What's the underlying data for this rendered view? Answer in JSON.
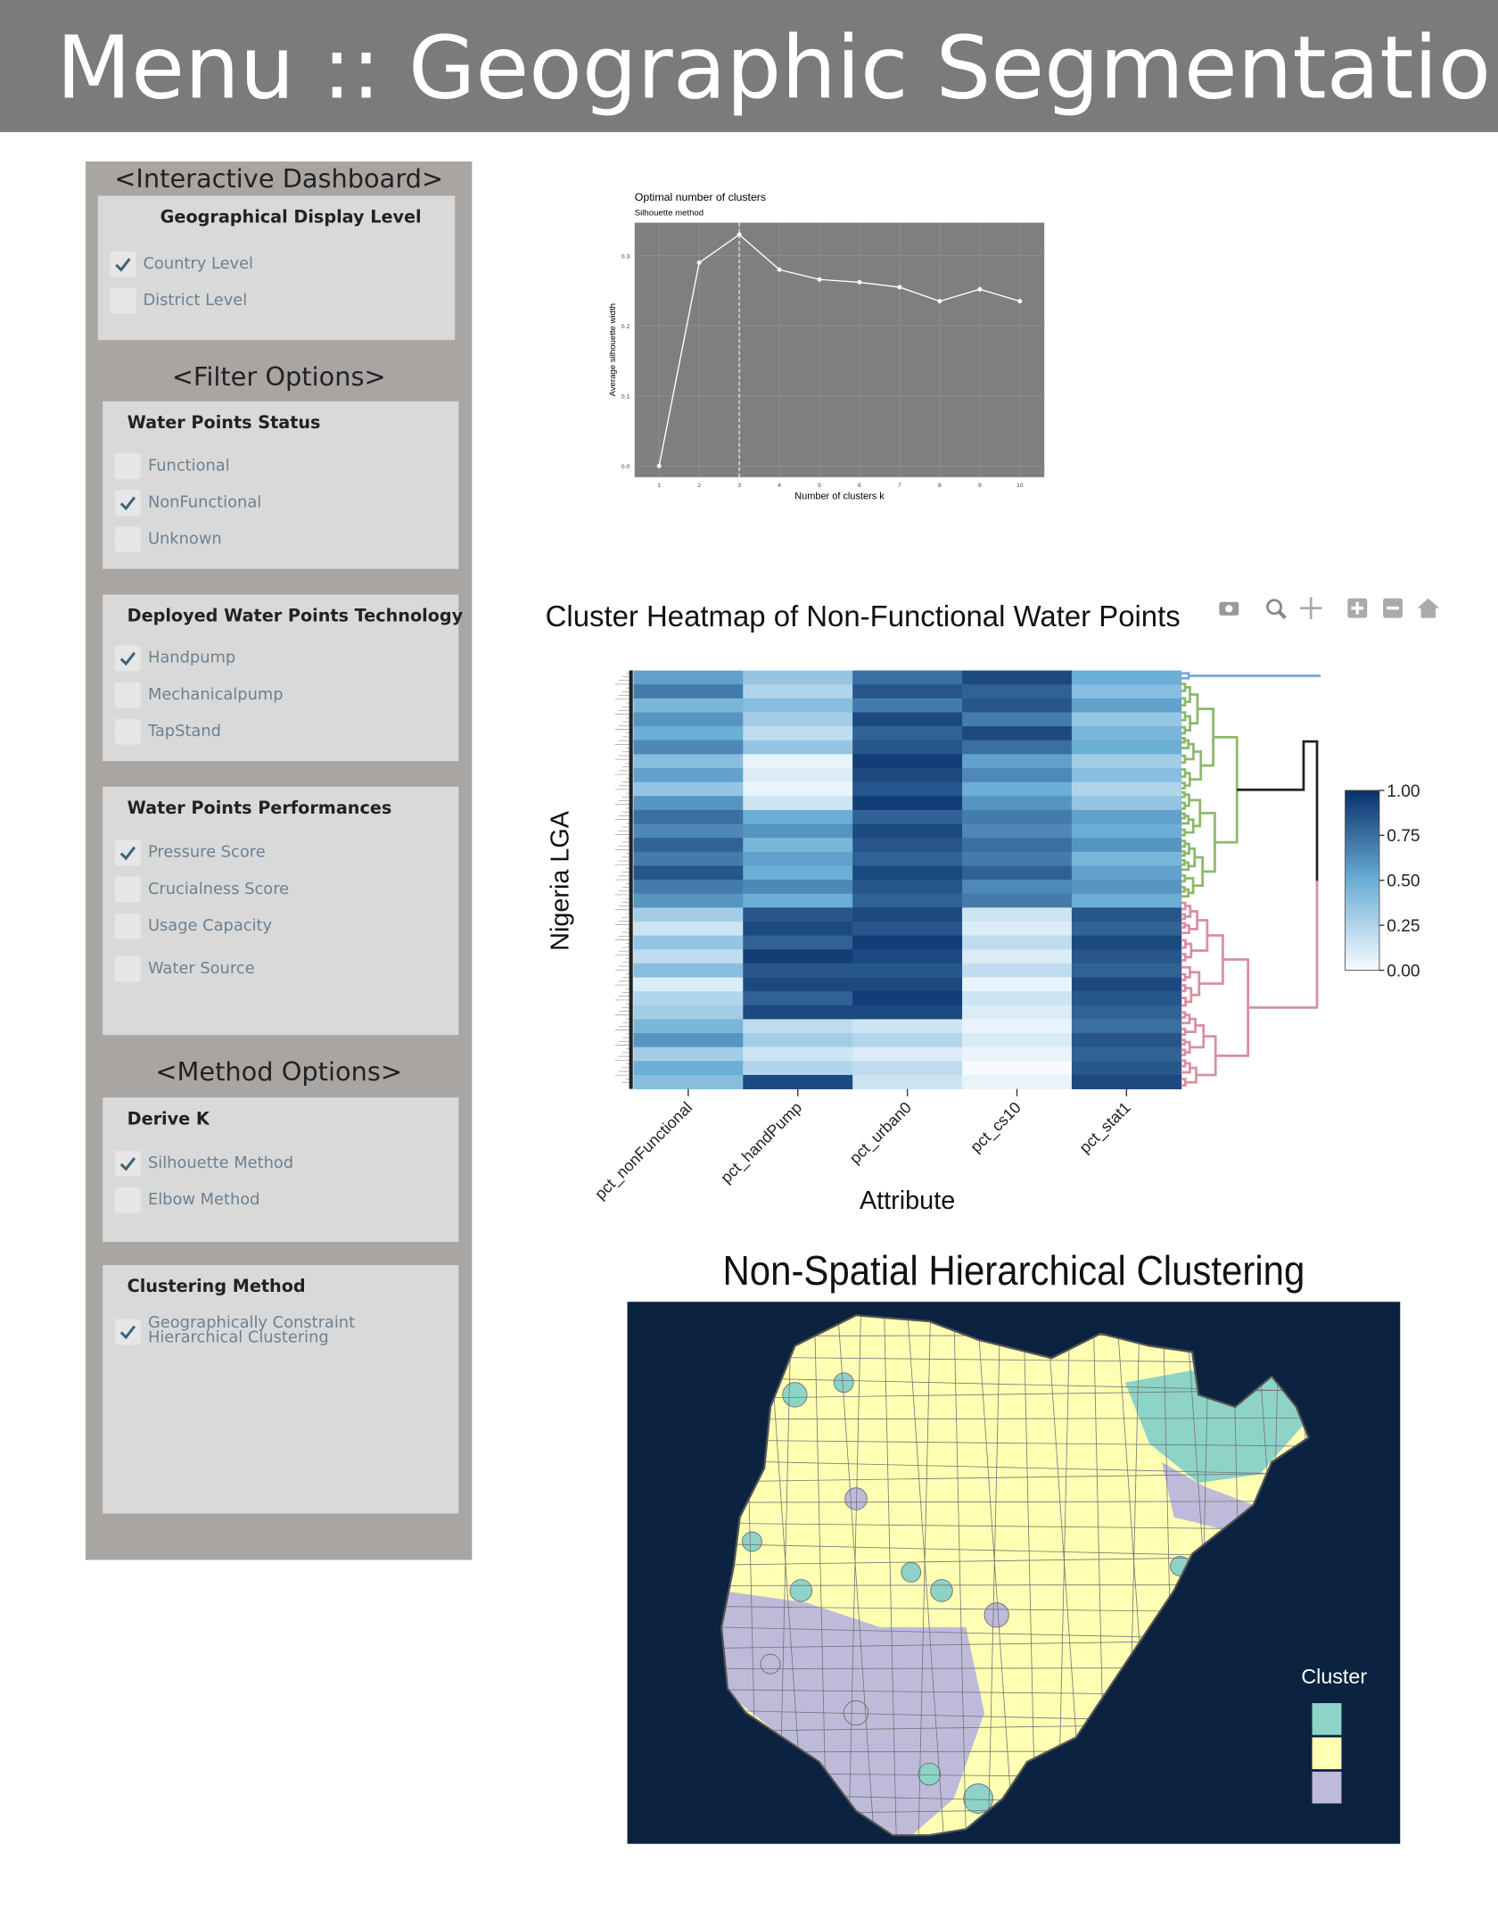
{
  "header": {
    "title": "Menu :: Geographic Segmentation"
  },
  "sidebar": {
    "sections": [
      {
        "heading": "<Interactive Dashboard>",
        "groups": [
          {
            "title": "Geographical Display Level",
            "options": [
              {
                "label": "Country Level",
                "checked": true
              },
              {
                "label": "District Level",
                "checked": false
              }
            ]
          }
        ]
      },
      {
        "heading": "<Filter Options>",
        "groups": [
          {
            "title": "Water Points Status",
            "options": [
              {
                "label": "Functional",
                "checked": false
              },
              {
                "label": "NonFunctional",
                "checked": true
              },
              {
                "label": "Unknown",
                "checked": false
              }
            ]
          },
          {
            "title": "Deployed Water Points Technology",
            "options": [
              {
                "label": "Handpump",
                "checked": true
              },
              {
                "label": "Mechanicalpump",
                "checked": false
              },
              {
                "label": "TapStand",
                "checked": false
              }
            ]
          },
          {
            "title": "Water Points Performances",
            "options": [
              {
                "label": "Pressure Score",
                "checked": true
              },
              {
                "label": "Crucialness Score",
                "checked": false
              },
              {
                "label": "Usage Capacity",
                "checked": false
              },
              {
                "label": "Water Source",
                "checked": false
              }
            ]
          }
        ]
      },
      {
        "heading": "<Method Options>",
        "groups": [
          {
            "title": "Derive K",
            "options": [
              {
                "label": "Silhouette Method",
                "checked": true
              },
              {
                "label": "Elbow Method",
                "checked": false
              }
            ]
          },
          {
            "title": "Clustering Method",
            "options": [
              {
                "label": "Geographically Constraint Hierarchical Clustering",
                "checked": true
              }
            ]
          }
        ]
      }
    ]
  },
  "silhouette_chart": {
    "type": "line",
    "title": "Optimal number of clusters",
    "subtitle": "Silhouette method",
    "x_label": "Number of clusters k",
    "y_label": "Average silhouette width",
    "x": [
      1,
      2,
      3,
      4,
      5,
      6,
      7,
      8,
      9,
      10
    ],
    "values": [
      0.0,
      0.29,
      0.33,
      0.28,
      0.266,
      0.262,
      0.255,
      0.235,
      0.252,
      0.235
    ],
    "optimal_k": 3,
    "xlim": [
      0.39,
      10.61
    ],
    "ylim": [
      -0.016,
      0.347
    ],
    "xticks": [
      1,
      2,
      3,
      4,
      5,
      6,
      7,
      8,
      9,
      10
    ],
    "yticks": [
      {
        "value": 0,
        "label": "0.0"
      },
      0.1,
      0.2,
      0.3
    ],
    "grid": true
  },
  "heatmap": {
    "type": "heatmap",
    "title": "Cluster Heatmap of Non-Functional Water Points",
    "y_label": "Nigeria LGA",
    "x_label": "Attribute",
    "columns": [
      "pct_nonFunctional",
      "pct_handPump",
      "pct_urban0",
      "pct_cs10",
      "pct_stat1"
    ],
    "values": [
      [
        0.55,
        0.35,
        0.75,
        0.9,
        0.5
      ],
      [
        0.7,
        0.25,
        0.85,
        0.8,
        0.4
      ],
      [
        0.45,
        0.4,
        0.7,
        0.85,
        0.55
      ],
      [
        0.6,
        0.3,
        0.9,
        0.7,
        0.35
      ],
      [
        0.5,
        0.2,
        0.8,
        0.9,
        0.45
      ],
      [
        0.65,
        0.35,
        0.85,
        0.75,
        0.5
      ],
      [
        0.4,
        0.05,
        0.95,
        0.55,
        0.3
      ],
      [
        0.55,
        0.1,
        0.9,
        0.65,
        0.4
      ],
      [
        0.35,
        0.05,
        0.85,
        0.5,
        0.25
      ],
      [
        0.6,
        0.15,
        0.95,
        0.6,
        0.35
      ],
      [
        0.75,
        0.5,
        0.8,
        0.7,
        0.55
      ],
      [
        0.65,
        0.6,
        0.9,
        0.65,
        0.5
      ],
      [
        0.8,
        0.45,
        0.85,
        0.75,
        0.6
      ],
      [
        0.7,
        0.55,
        0.8,
        0.7,
        0.45
      ],
      [
        0.85,
        0.5,
        0.9,
        0.8,
        0.55
      ],
      [
        0.7,
        0.65,
        0.85,
        0.65,
        0.6
      ],
      [
        0.6,
        0.5,
        0.8,
        0.7,
        0.5
      ],
      [
        0.3,
        0.85,
        0.9,
        0.15,
        0.85
      ],
      [
        0.15,
        0.9,
        0.85,
        0.1,
        0.8
      ],
      [
        0.35,
        0.8,
        0.95,
        0.2,
        0.9
      ],
      [
        0.2,
        0.95,
        0.9,
        0.1,
        0.85
      ],
      [
        0.4,
        0.85,
        0.85,
        0.2,
        0.8
      ],
      [
        0.1,
        0.9,
        0.9,
        0.05,
        0.9
      ],
      [
        0.25,
        0.8,
        0.95,
        0.15,
        0.85
      ],
      [
        0.3,
        0.9,
        0.9,
        0.1,
        0.8
      ],
      [
        0.45,
        0.2,
        0.15,
        0.05,
        0.75
      ],
      [
        0.6,
        0.3,
        0.25,
        0.1,
        0.85
      ],
      [
        0.3,
        0.15,
        0.1,
        0.05,
        0.8
      ],
      [
        0.5,
        0.25,
        0.2,
        0.0,
        0.85
      ],
      [
        0.4,
        0.9,
        0.15,
        0.05,
        0.9
      ]
    ],
    "zlim": [
      0,
      1
    ],
    "colorscale": [
      "#f7fbff",
      "#6baed6",
      "#08306b"
    ],
    "colorbar_ticks": [
      {
        "value": 1,
        "label": "1.00"
      },
      {
        "value": 0.75,
        "label": "0.75"
      },
      {
        "value": 0.5,
        "label": "0.50"
      },
      {
        "value": 0.25,
        "label": "0.25"
      },
      {
        "value": 0,
        "label": "0.00"
      }
    ],
    "dendrogram_colors": [
      "#7aa6d6",
      "#8db86b",
      "#d98fa0"
    ]
  },
  "cluster_map": {
    "title": "Non-Spatial Hierarchical Clustering",
    "legend_title": "Cluster",
    "colors": [
      "#8dd3c7",
      "#ffffb3",
      "#bebada"
    ],
    "background": "#0b2340"
  }
}
